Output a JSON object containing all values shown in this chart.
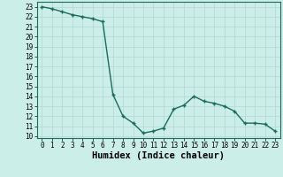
{
  "xlabel": "Humidex (Indice chaleur)",
  "x_values": [
    0,
    1,
    2,
    3,
    4,
    5,
    6,
    7,
    8,
    9,
    10,
    11,
    12,
    13,
    14,
    15,
    16,
    17,
    18,
    19,
    20,
    21,
    22,
    23
  ],
  "y_values": [
    23.0,
    22.8,
    22.5,
    22.2,
    22.0,
    21.8,
    21.5,
    14.2,
    12.0,
    11.3,
    10.3,
    10.5,
    10.8,
    12.7,
    13.1,
    14.0,
    13.5,
    13.3,
    13.0,
    12.5,
    11.3,
    11.3,
    11.2,
    10.5
  ],
  "line_color": "#1a6b5a",
  "marker_color": "#1a6b5a",
  "bg_color": "#cceee8",
  "grid_color": "#b0d8d0",
  "ylim": [
    9.8,
    23.5
  ],
  "xlim": [
    -0.5,
    23.5
  ],
  "yticks": [
    10,
    11,
    12,
    13,
    14,
    15,
    16,
    17,
    18,
    19,
    20,
    21,
    22,
    23
  ],
  "xticks": [
    0,
    1,
    2,
    3,
    4,
    5,
    6,
    7,
    8,
    9,
    10,
    11,
    12,
    13,
    14,
    15,
    16,
    17,
    18,
    19,
    20,
    21,
    22,
    23
  ],
  "xlabel_fontsize": 7.5,
  "tick_fontsize": 5.5,
  "linewidth": 1.0,
  "markersize": 3.5,
  "marker": "+"
}
